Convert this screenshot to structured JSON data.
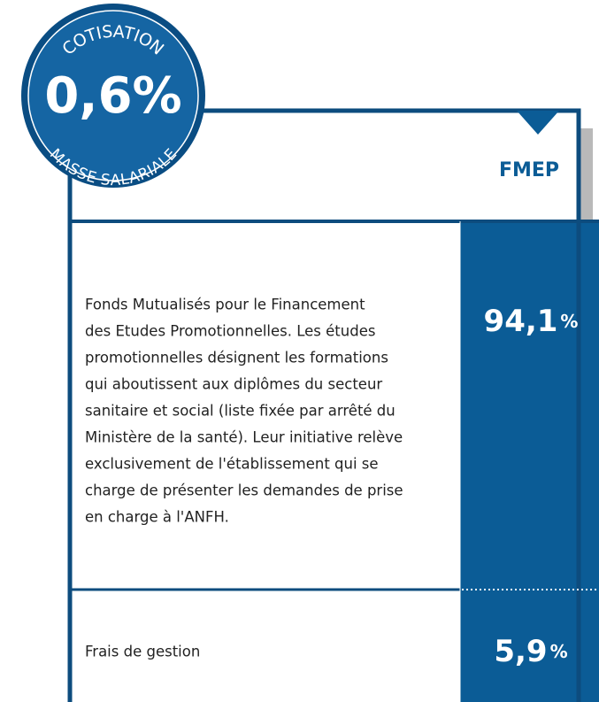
{
  "badge": {
    "top": "COTISATION",
    "value": "0,6%",
    "bottom": "MASSE SALARIALE"
  },
  "header": {
    "title": "FMEP"
  },
  "rows": [
    {
      "lines": [
        "Fonds Mutualisés pour le Financement",
        "des Etudes Promotionnelles. Les études",
        "promotionnelles désignent les formations",
        "qui aboutissent aux diplômes du secteur",
        "sanitaire et social (liste fixée par arrêté du",
        "Ministère de la santé). Leur initiative relève",
        "exclusivement de l'établissement qui se",
        "charge de présenter les demandes de prise",
        "en charge à l'ANFH."
      ],
      "value": "94,1",
      "unit": "%"
    },
    {
      "lines": [
        "Frais de gestion"
      ],
      "value": "5,9",
      "unit": "%"
    }
  ]
}
